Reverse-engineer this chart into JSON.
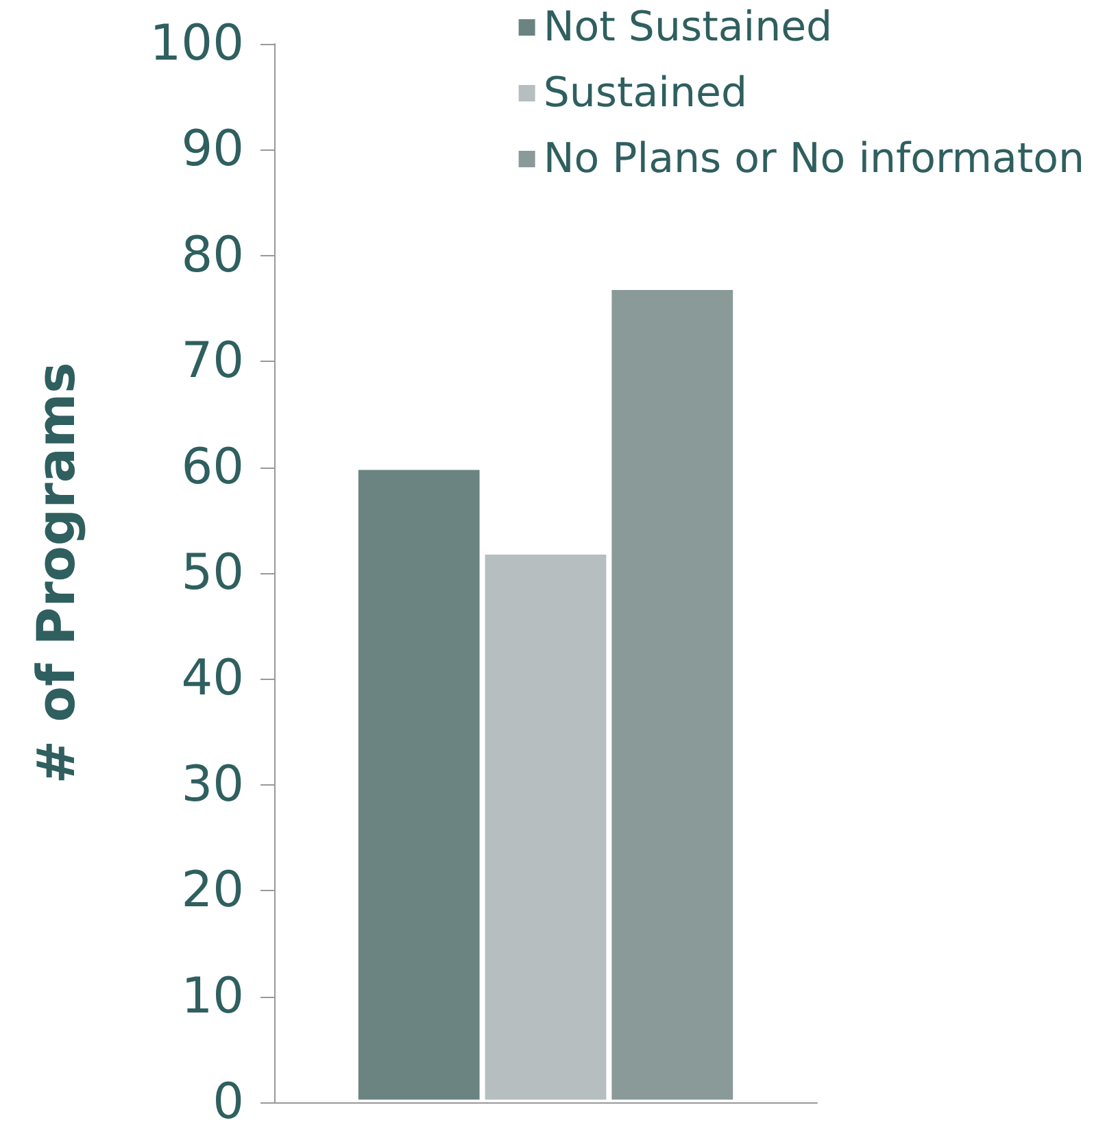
{
  "chart_data": {
    "type": "bar",
    "ylabel": "# of Programs",
    "categories": [
      null
    ],
    "series": [
      {
        "name": "Not Sustained",
        "color": "#6b8482",
        "values": [
          60
        ]
      },
      {
        "name": "Sustained",
        "color": "#b6bebf",
        "values": [
          52
        ]
      },
      {
        "name": "No Plans or No informaton",
        "color": "#899a99",
        "values": [
          77
        ]
      }
    ],
    "ylim": [
      0,
      100
    ],
    "yticks": [
      0,
      10,
      20,
      30,
      40,
      50,
      60,
      70,
      80,
      90,
      100
    ],
    "grid": false,
    "legend": "top right"
  }
}
